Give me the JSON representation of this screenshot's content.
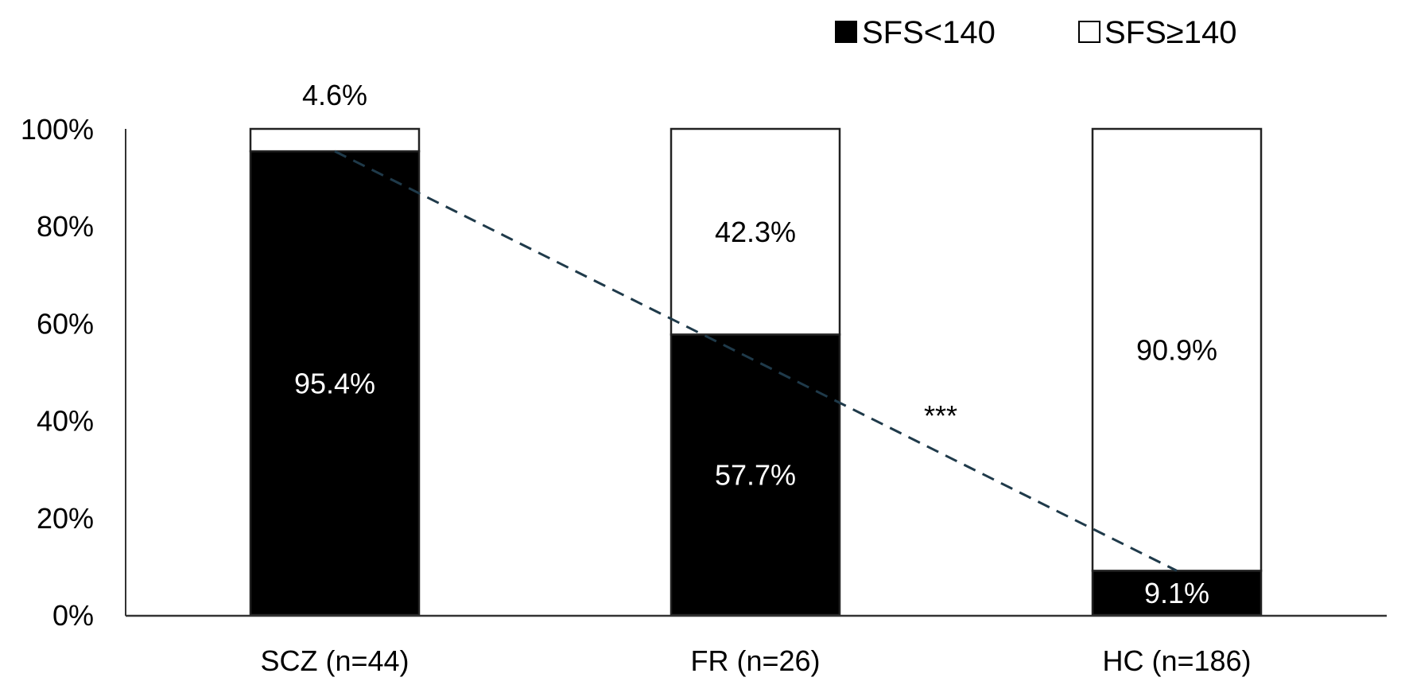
{
  "chart_data": {
    "type": "bar",
    "stacked": true,
    "categories": [
      "SCZ  (n=44)",
      "FR (n=26)",
      "HC (n=186)"
    ],
    "series": [
      {
        "name": "SFS<140",
        "color": "#000000",
        "values": [
          95.4,
          57.7,
          9.1
        ],
        "labels": [
          "95.4%",
          "57.7%",
          "9.1%"
        ]
      },
      {
        "name": "SFS≥140",
        "color": "#ffffff",
        "values": [
          4.6,
          42.3,
          90.9
        ],
        "labels": [
          "4.6%",
          "42.3%",
          "90.9%"
        ]
      }
    ],
    "ylim": [
      0,
      100
    ],
    "yticks": [
      "0%",
      "20%",
      "40%",
      "60%",
      "80%",
      "100%"
    ],
    "ytick_values": [
      0,
      20,
      40,
      60,
      80,
      100
    ],
    "trend_line": {
      "from_category": 0,
      "to_category": 2,
      "from_value": 95.4,
      "to_value": 9.1,
      "style": "dashed",
      "color": "#1f3a4a"
    },
    "annotation": "***",
    "legend_position": "top-right",
    "grid": false,
    "title": "",
    "xlabel": "",
    "ylabel": ""
  }
}
